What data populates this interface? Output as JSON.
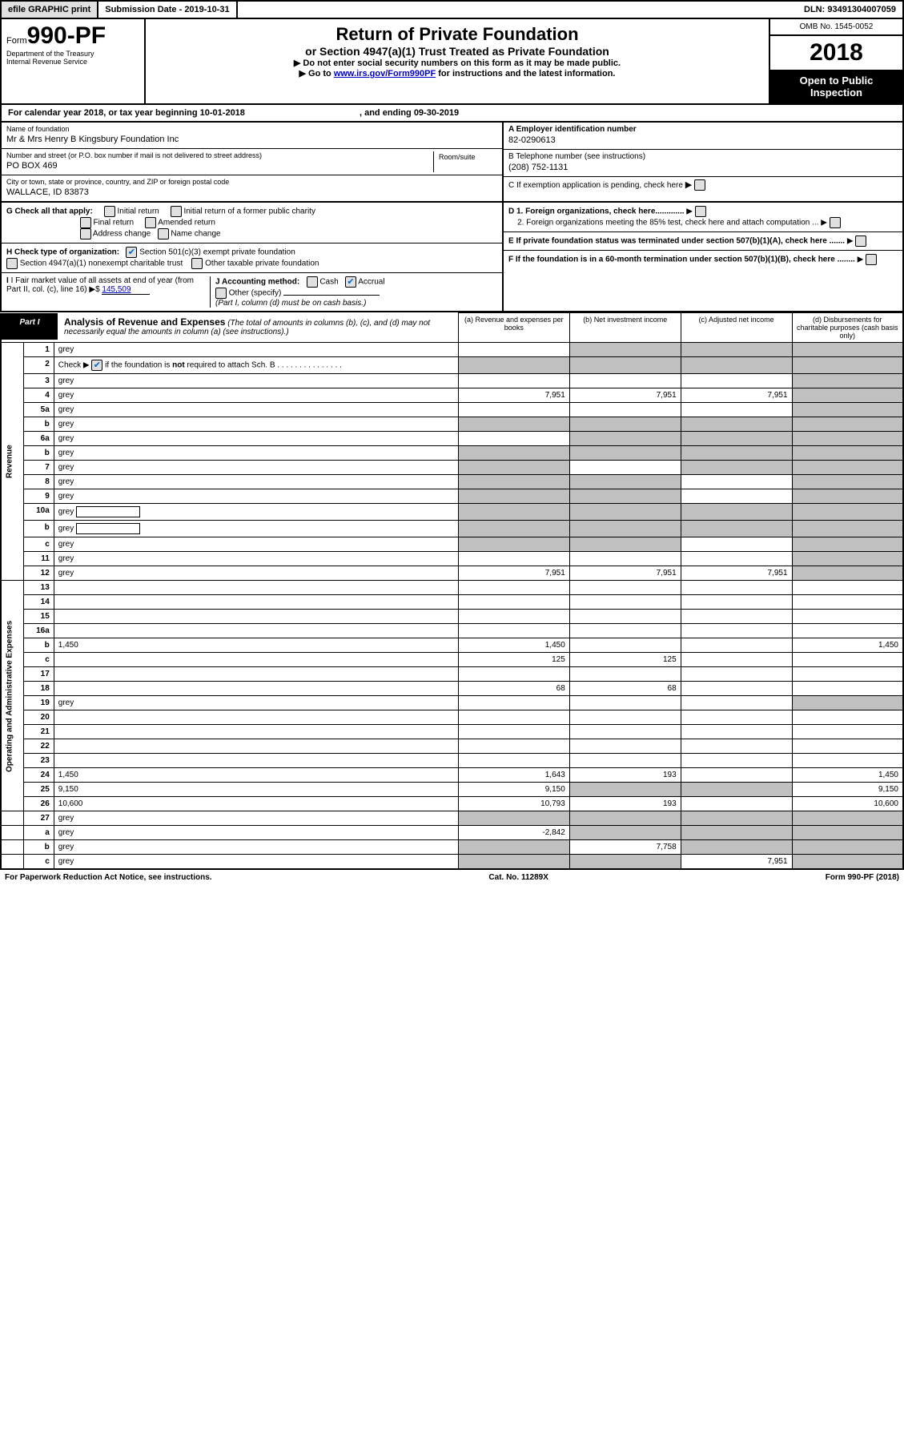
{
  "top_bar": {
    "efile": "efile GRAPHIC print",
    "submission": "Submission Date - 2019-10-31",
    "dln": "DLN: 93491304007059"
  },
  "header": {
    "form_label": "Form",
    "form_number": "990-PF",
    "dept1": "Department of the Treasury",
    "dept2": "Internal Revenue Service",
    "title": "Return of Private Foundation",
    "subtitle": "or Section 4947(a)(1) Trust Treated as Private Foundation",
    "note1": "▶ Do not enter social security numbers on this form as it may be made public.",
    "note2_pre": "▶ Go to ",
    "note2_link": "www.irs.gov/Form990PF",
    "note2_post": " for instructions and the latest information.",
    "omb": "OMB No. 1545-0052",
    "year": "2018",
    "open_public": "Open to Public Inspection"
  },
  "calendar": {
    "text": "For calendar year 2018, or tax year beginning 10-01-2018",
    "ending": ", and ending 09-30-2019"
  },
  "info": {
    "name_label": "Name of foundation",
    "name": "Mr & Mrs Henry B Kingsbury Foundation Inc",
    "addr_label": "Number and street (or P.O. box number if mail is not delivered to street address)",
    "addr": "PO BOX 469",
    "room_label": "Room/suite",
    "city_label": "City or town, state or province, country, and ZIP or foreign postal code",
    "city": "WALLACE, ID  83873",
    "ein_label": "A Employer identification number",
    "ein": "82-0290613",
    "tel_label": "B Telephone number (see instructions)",
    "tel": "(208) 752-1131",
    "c_label": "C If exemption application is pending, check here",
    "g_label": "G Check all that apply:",
    "g_opts": [
      "Initial return",
      "Initial return of a former public charity",
      "Final return",
      "Amended return",
      "Address change",
      "Name change"
    ],
    "d1": "D 1. Foreign organizations, check here.............",
    "d2": "2. Foreign organizations meeting the 85% test, check here and attach computation ...",
    "e": "E  If private foundation status was terminated under section 507(b)(1)(A), check here .......",
    "h_label": "H Check type of organization:",
    "h_opt1": "Section 501(c)(3) exempt private foundation",
    "h_opt2": "Section 4947(a)(1) nonexempt charitable trust",
    "h_opt3": "Other taxable private foundation",
    "i_label": "I Fair market value of all assets at end of year (from Part II, col. (c), line 16)",
    "i_val": "145,509",
    "j_label": "J Accounting method:",
    "j_cash": "Cash",
    "j_accrual": "Accrual",
    "j_other": "Other (specify)",
    "j_note": "(Part I, column (d) must be on cash basis.)",
    "f_label": "F  If the foundation is in a 60-month termination under section 507(b)(1)(B), check here ........"
  },
  "part1": {
    "tag": "Part I",
    "title": "Analysis of Revenue and Expenses",
    "note": "(The total of amounts in columns (b), (c), and (d) may not necessarily equal the amounts in column (a) (see instructions).)",
    "col_a": "(a)  Revenue and expenses per books",
    "col_b": "(b)  Net investment income",
    "col_c": "(c)  Adjusted net income",
    "col_d": "(d)  Disbursements for charitable purposes (cash basis only)",
    "revenue_label": "Revenue",
    "expenses_label": "Operating and Administrative Expenses"
  },
  "rows": [
    {
      "n": "1",
      "d": "grey",
      "a": "",
      "b": "grey",
      "c": "grey"
    },
    {
      "n": "2",
      "d": "grey",
      "special": "checked",
      "a": "grey",
      "b": "grey",
      "c": "grey"
    },
    {
      "n": "3",
      "d": "grey",
      "a": "",
      "b": "",
      "c": ""
    },
    {
      "n": "4",
      "d": "grey",
      "a": "7,951",
      "b": "7,951",
      "c": "7,951"
    },
    {
      "n": "5a",
      "d": "grey",
      "a": "",
      "b": "",
      "c": ""
    },
    {
      "n": "b",
      "d": "grey",
      "a": "grey",
      "b": "grey",
      "c": "grey"
    },
    {
      "n": "6a",
      "d": "grey",
      "a": "",
      "b": "grey",
      "c": "grey"
    },
    {
      "n": "b",
      "d": "grey",
      "a": "grey",
      "b": "grey",
      "c": "grey"
    },
    {
      "n": "7",
      "d": "grey",
      "a": "grey",
      "b": "",
      "c": "grey"
    },
    {
      "n": "8",
      "d": "grey",
      "a": "grey",
      "b": "grey",
      "c": ""
    },
    {
      "n": "9",
      "d": "grey",
      "a": "grey",
      "b": "grey",
      "c": ""
    },
    {
      "n": "10a",
      "d": "grey",
      "box": true,
      "a": "grey",
      "b": "grey",
      "c": "grey"
    },
    {
      "n": "b",
      "d": "grey",
      "box": true,
      "a": "grey",
      "b": "grey",
      "c": "grey"
    },
    {
      "n": "c",
      "d": "grey",
      "a": "grey",
      "b": "grey",
      "c": ""
    },
    {
      "n": "11",
      "d": "grey",
      "a": "",
      "b": "",
      "c": ""
    },
    {
      "n": "12",
      "d": "grey",
      "a": "7,951",
      "b": "7,951",
      "c": "7,951"
    }
  ],
  "exp_rows": [
    {
      "n": "13",
      "d": "",
      "a": "",
      "b": "",
      "c": ""
    },
    {
      "n": "14",
      "d": "",
      "a": "",
      "b": "",
      "c": ""
    },
    {
      "n": "15",
      "d": "",
      "a": "",
      "b": "",
      "c": ""
    },
    {
      "n": "16a",
      "d": "",
      "a": "",
      "b": "",
      "c": ""
    },
    {
      "n": "b",
      "d": "1,450",
      "a": "1,450",
      "b": "",
      "c": ""
    },
    {
      "n": "c",
      "d": "",
      "a": "125",
      "b": "125",
      "c": ""
    },
    {
      "n": "17",
      "d": "",
      "a": "",
      "b": "",
      "c": ""
    },
    {
      "n": "18",
      "d": "",
      "a": "68",
      "b": "68",
      "c": ""
    },
    {
      "n": "19",
      "d": "grey",
      "a": "",
      "b": "",
      "c": ""
    },
    {
      "n": "20",
      "d": "",
      "a": "",
      "b": "",
      "c": ""
    },
    {
      "n": "21",
      "d": "",
      "a": "",
      "b": "",
      "c": ""
    },
    {
      "n": "22",
      "d": "",
      "a": "",
      "b": "",
      "c": ""
    },
    {
      "n": "23",
      "d": "",
      "a": "",
      "b": "",
      "c": ""
    },
    {
      "n": "24",
      "d": "1,450",
      "a": "1,643",
      "b": "193",
      "c": ""
    },
    {
      "n": "25",
      "d": "9,150",
      "a": "9,150",
      "b": "grey",
      "c": "grey"
    },
    {
      "n": "26",
      "d": "10,600",
      "a": "10,793",
      "b": "193",
      "c": ""
    }
  ],
  "final_rows": [
    {
      "n": "27",
      "d": "grey",
      "a": "grey",
      "b": "grey",
      "c": "grey"
    },
    {
      "n": "a",
      "d": "grey",
      "a": "-2,842",
      "b": "grey",
      "c": "grey"
    },
    {
      "n": "b",
      "d": "grey",
      "a": "grey",
      "b": "7,758",
      "c": "grey"
    },
    {
      "n": "c",
      "d": "grey",
      "a": "grey",
      "b": "grey",
      "c": "7,951"
    }
  ],
  "footer": {
    "left": "For Paperwork Reduction Act Notice, see instructions.",
    "mid": "Cat. No. 11289X",
    "right": "Form 990-PF (2018)"
  }
}
